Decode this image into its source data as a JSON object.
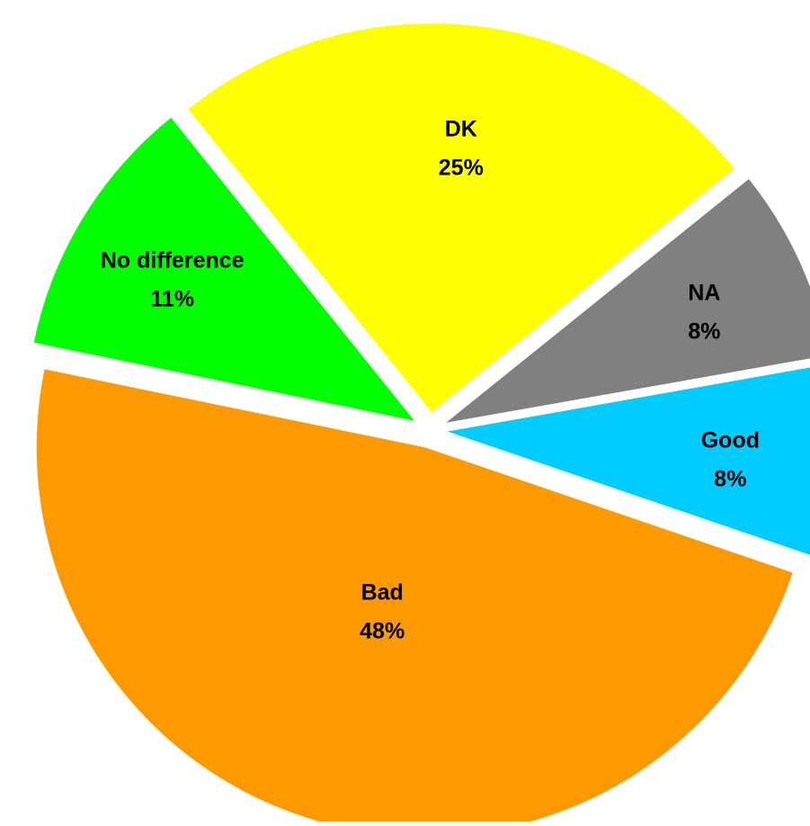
{
  "chart_data": {
    "type": "pie",
    "title": "",
    "slices": [
      {
        "label": "Good",
        "value": 8,
        "value_label": "8%",
        "color": "#00CCFF"
      },
      {
        "label": "Bad",
        "value": 48,
        "value_label": "48%",
        "color": "#FF9900"
      },
      {
        "label": "No difference",
        "value": 11,
        "value_label": "11%",
        "color": "#00FF00"
      },
      {
        "label": "DK",
        "value": 25,
        "value_label": "25%",
        "color": "#FFFF00"
      },
      {
        "label": "NA",
        "value": 8,
        "value_label": "8%",
        "color": "#808080"
      }
    ],
    "exploded": true,
    "legend": "none",
    "label_style": "inside"
  }
}
